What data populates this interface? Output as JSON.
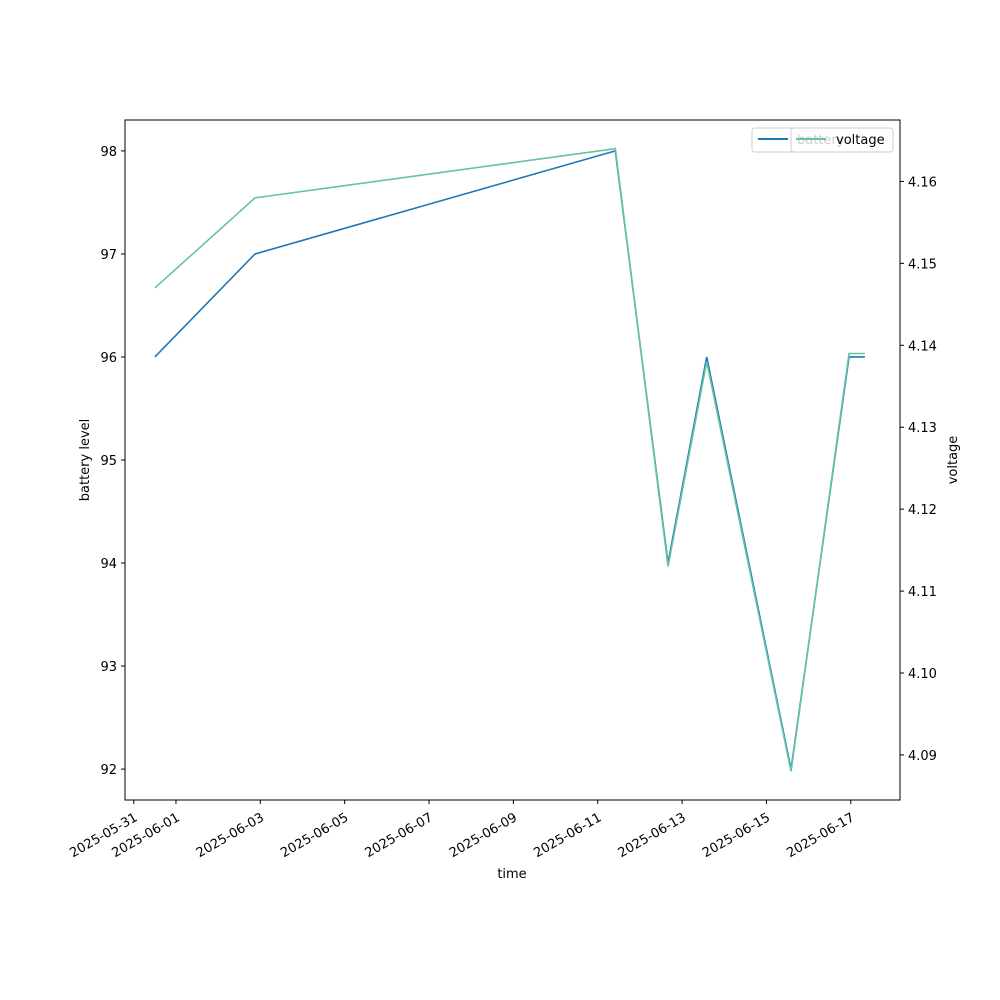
{
  "chart_data": {
    "type": "line",
    "title": "",
    "xlabel": "time",
    "ylabel_left": "battery level",
    "ylabel_right": "voltage",
    "x": [
      "2025-05-31T12:00",
      "2025-06-02T21:00",
      "2025-06-11T10:00",
      "2025-06-12T16:00",
      "2025-06-13T14:00",
      "2025-06-15T14:00",
      "2025-06-16T23:00",
      "2025-06-17T08:00"
    ],
    "x_ticks": [
      "2025-05-31",
      "2025-06-01",
      "2025-06-03",
      "2025-06-05",
      "2025-06-07",
      "2025-06-09",
      "2025-06-11",
      "2025-06-13",
      "2025-06-15",
      "2025-06-17"
    ],
    "xlim": [
      "2025-05-30T19:00",
      "2025-06-18T04:00"
    ],
    "series": [
      {
        "name": "battery",
        "axis": "left",
        "color": "#1f77b4",
        "values": [
          96,
          97,
          98,
          94,
          96,
          92,
          96,
          96
        ]
      },
      {
        "name": "voltage",
        "axis": "right",
        "color": "#66c2a5",
        "values": [
          4.147,
          4.158,
          4.164,
          4.113,
          4.138,
          4.088,
          4.139,
          4.139
        ]
      }
    ],
    "y_left_ticks": [
      92,
      93,
      94,
      95,
      96,
      97,
      98
    ],
    "ylim_left": [
      91.7,
      98.3
    ],
    "y_right_ticks": [
      4.09,
      4.1,
      4.11,
      4.12,
      4.13,
      4.14,
      4.15,
      4.16
    ],
    "ylim_right": [
      4.0845,
      4.1675
    ],
    "grid": false,
    "legend": "top-right"
  }
}
